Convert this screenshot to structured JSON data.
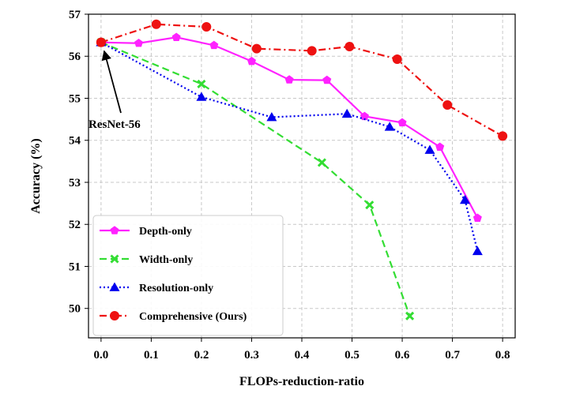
{
  "chart_data": {
    "type": "line",
    "xlabel": "FLOPs-reduction-ratio",
    "ylabel": "Accuracy (%)",
    "xlim": [
      -0.025,
      0.825
    ],
    "ylim": [
      49.3,
      57.0
    ],
    "xticks": [
      0.0,
      0.1,
      0.2,
      0.3,
      0.4,
      0.5,
      0.6,
      0.7,
      0.8
    ],
    "xtick_labels": [
      "0.0",
      "0.1",
      "0.2",
      "0.3",
      "0.4",
      "0.5",
      "0.6",
      "0.7",
      "0.8"
    ],
    "yticks": [
      50,
      51,
      52,
      53,
      54,
      55,
      56,
      57
    ],
    "ytick_labels": [
      "50",
      "51",
      "52",
      "53",
      "54",
      "55",
      "56",
      "57"
    ],
    "grid": true,
    "legend_position": "bottom-left",
    "annotation": {
      "text": "ResNet-56",
      "x": 0.0,
      "y": 56.33
    },
    "series": [
      {
        "name": "Depth-only",
        "color": "#ff22ff",
        "line_style": "solid",
        "marker": "pentagon",
        "x": [
          0.0,
          0.075,
          0.15,
          0.225,
          0.3,
          0.375,
          0.45,
          0.525,
          0.6,
          0.675,
          0.75
        ],
        "y": [
          56.33,
          56.31,
          56.45,
          56.26,
          55.88,
          55.44,
          55.43,
          54.57,
          54.42,
          53.84,
          52.15
        ]
      },
      {
        "name": "Width-only",
        "color": "#33dd33",
        "line_style": "dashed",
        "marker": "x",
        "x": [
          0.0,
          0.2,
          0.44,
          0.535,
          0.615
        ],
        "y": [
          56.33,
          55.34,
          53.47,
          52.46,
          49.82
        ]
      },
      {
        "name": "Resolution-only",
        "color": "#0000ee",
        "line_style": "dotted",
        "marker": "triangle",
        "x": [
          0.0,
          0.2,
          0.34,
          0.49,
          0.575,
          0.655,
          0.725,
          0.75
        ],
        "y": [
          56.33,
          55.03,
          54.55,
          54.63,
          54.32,
          53.77,
          52.58,
          51.36
        ]
      },
      {
        "name": "Comprehensive (Ours)",
        "color": "#ee1111",
        "line_style": "dashdot",
        "marker": "circle",
        "x": [
          0.0,
          0.11,
          0.21,
          0.31,
          0.42,
          0.495,
          0.59,
          0.69,
          0.8
        ],
        "y": [
          56.33,
          56.76,
          56.7,
          56.18,
          56.13,
          56.23,
          55.93,
          54.84,
          54.1
        ]
      }
    ]
  }
}
